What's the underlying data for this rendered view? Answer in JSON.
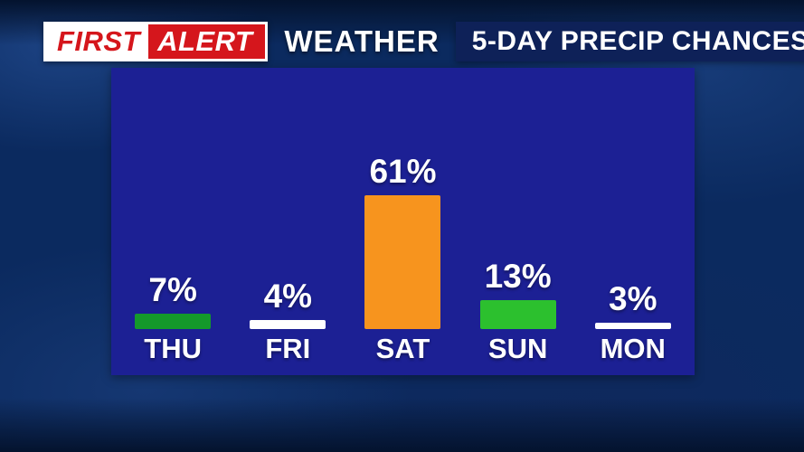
{
  "header": {
    "brand_first": "FIRST",
    "brand_alert": "ALERT",
    "weather_label": "WEATHER",
    "title": "5-DAY PRECIP CHANCES"
  },
  "chart_data": {
    "type": "bar",
    "title": "5-DAY PRECIP CHANCES",
    "categories": [
      "THU",
      "FRI",
      "SAT",
      "SUN",
      "MON"
    ],
    "values": [
      7,
      4,
      61,
      13,
      3
    ],
    "value_labels": [
      "7%",
      "4%",
      "61%",
      "13%",
      "3%"
    ],
    "unit": "%",
    "bar_colors": [
      "#14992b",
      "#ffffff",
      "#f7941e",
      "#2cc02e",
      "#ffffff"
    ],
    "ylim": [
      0,
      65
    ],
    "xlabel": "",
    "ylabel": "",
    "grid": false,
    "legend": false
  },
  "colors": {
    "background": "#0b2a5f",
    "panel": "#1c2094",
    "brand_red": "#d5161c",
    "title_box_bg": "#0e2158",
    "text": "#ffffff"
  }
}
